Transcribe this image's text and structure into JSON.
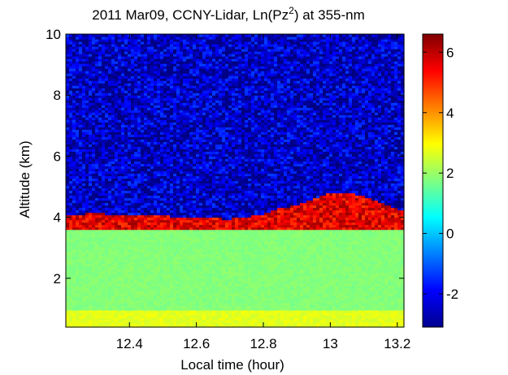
{
  "chart_data": {
    "type": "heatmap",
    "title": {
      "prefix": "2011 Mar09, CCNY-Lidar, Ln(Pz",
      "superscript": "2",
      "suffix": ") at 355-nm"
    },
    "xlabel": "Local time (hour)",
    "ylabel": "Altitude (km)",
    "xlim": [
      12.21,
      13.22
    ],
    "ylim": [
      0.4,
      10.0
    ],
    "x_ticks": [
      12.4,
      12.6,
      12.8,
      13.0,
      13.2
    ],
    "x_tick_labels": [
      "12.4",
      "12.6",
      "12.8",
      "13",
      "13.2"
    ],
    "y_ticks": [
      2,
      4,
      6,
      8,
      10
    ],
    "y_tick_labels": [
      "2",
      "4",
      "6",
      "8",
      "10"
    ],
    "colorbar": {
      "colormap": "jet",
      "range": [
        -3.1,
        6.6
      ],
      "ticks": [
        -2,
        0,
        2,
        4,
        6
      ],
      "tick_labels": [
        "-2",
        "0",
        "2",
        "4",
        "6"
      ]
    },
    "layers": [
      {
        "altitude_km": [
          0.4,
          1.0
        ],
        "value": 2.7
      },
      {
        "altitude_km": [
          1.0,
          3.6
        ],
        "value": 1.8
      },
      {
        "altitude_km": [
          3.6,
          4.1
        ],
        "value": 5.3
      },
      {
        "altitude_km": [
          4.1,
          10.0
        ],
        "value": -2.3
      }
    ],
    "cloud_top_km": {
      "x": [
        12.21,
        12.3,
        12.4,
        12.5,
        12.6,
        12.7,
        12.8,
        12.85,
        12.9,
        13.0,
        13.05,
        13.1,
        13.15,
        13.22
      ],
      "y": [
        4.05,
        4.15,
        4.05,
        4.05,
        4.0,
        3.95,
        4.1,
        4.3,
        4.4,
        4.8,
        4.8,
        4.7,
        4.5,
        4.2
      ]
    },
    "grid": false
  }
}
